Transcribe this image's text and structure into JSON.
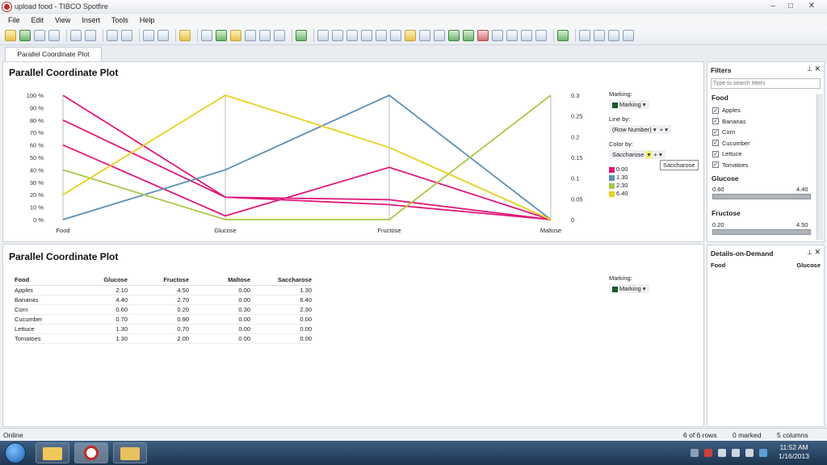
{
  "window": {
    "title": "upload food - TIBCO Spotfire",
    "minimize": "–",
    "maximize": "□",
    "close": "✕"
  },
  "menu": [
    "File",
    "Edit",
    "View",
    "Insert",
    "Tools",
    "Help"
  ],
  "tab": {
    "label": "Parallel Coordinate Plot"
  },
  "plot": {
    "title": "Parallel Coordinate Plot",
    "marking_label": "Marking:",
    "marking_value": "Marking",
    "lineby_label": "Line by:",
    "lineby_value": "(Row Number)",
    "colorby_label": "Color by:",
    "colorby_value": "Saccharose",
    "tooltip": "Saccharose",
    "colors": {
      "c0": "#e0187a",
      "c1": "#5b8fb5",
      "c2": "#a8c84a",
      "c3": "#e8d020"
    }
  },
  "chart_data": {
    "type": "line",
    "categories": [
      "Food",
      "Glucose",
      "Fructose",
      "Maltose"
    ],
    "left_ticks": [
      "100 %",
      "90 %",
      "80 %",
      "70 %",
      "60 %",
      "50 %",
      "40 %",
      "30 %",
      "20 %",
      "10 %",
      "0 %"
    ],
    "right_ticks": [
      "0.3",
      "0.25",
      "0.2",
      "0.15",
      "0.1",
      "0.05",
      "0"
    ],
    "legend": [
      {
        "label": "0.00",
        "color": "#e0187a"
      },
      {
        "label": "1.30",
        "color": "#5b8fb5"
      },
      {
        "label": "2.30",
        "color": "#a8c84a"
      },
      {
        "label": "6.40",
        "color": "#e8d020"
      }
    ],
    "series": [
      {
        "values": [
          100,
          18,
          12,
          0
        ],
        "color": "#e0187a"
      },
      {
        "values": [
          80,
          18,
          16,
          0
        ],
        "color": "#e0187a"
      },
      {
        "values": [
          60,
          3,
          42,
          0
        ],
        "color": "#e0187a"
      },
      {
        "values": [
          0,
          40,
          100,
          0
        ],
        "color": "#5b8fb5"
      },
      {
        "values": [
          40,
          0,
          0,
          100
        ],
        "color": "#a8c84a"
      },
      {
        "values": [
          20,
          100,
          58,
          0
        ],
        "color": "#e8d020"
      }
    ]
  },
  "table": {
    "title": "Parallel Coordinate Plot",
    "marking_label": "Marking:",
    "marking_value": "Marking",
    "columns": [
      "Food",
      "Glucose",
      "Fructose",
      "Maltose",
      "Saccharose"
    ],
    "rows": [
      [
        "Apples",
        "2.10",
        "4.50",
        "0.00",
        "1.30"
      ],
      [
        "Bananas",
        "4.40",
        "2.70",
        "0.00",
        "6.40"
      ],
      [
        "Corn",
        "0.60",
        "0.20",
        "0.30",
        "2.30"
      ],
      [
        "Cucumber",
        "0.70",
        "0.90",
        "0.00",
        "0.00"
      ],
      [
        "Lettuce",
        "1.30",
        "0.70",
        "0.00",
        "0.00"
      ],
      [
        "Tomatoes",
        "1.30",
        "2.00",
        "0.00",
        "0.00"
      ]
    ]
  },
  "filters": {
    "title": "Filters",
    "search_placeholder": "Type to search filters",
    "food_header": "Food",
    "food_items": [
      "Apples",
      "Bananas",
      "Corn",
      "Cucumber",
      "Lettuce",
      "Tomatoes"
    ],
    "glucose_header": "Glucose",
    "glucose_min": "0.60",
    "glucose_max": "4.40",
    "fructose_header": "Fructose",
    "fructose_min": "0.20",
    "fructose_max": "4.50"
  },
  "details": {
    "title": "Details-on-Demand",
    "col1": "Food",
    "col2": "Glucose"
  },
  "status": {
    "left": "Online",
    "rows": "6 of 6 rows",
    "marked": "0 marked",
    "columns": "5 columns"
  },
  "taskbar": {
    "time": "11:52 AM",
    "date": "1/16/2013"
  }
}
